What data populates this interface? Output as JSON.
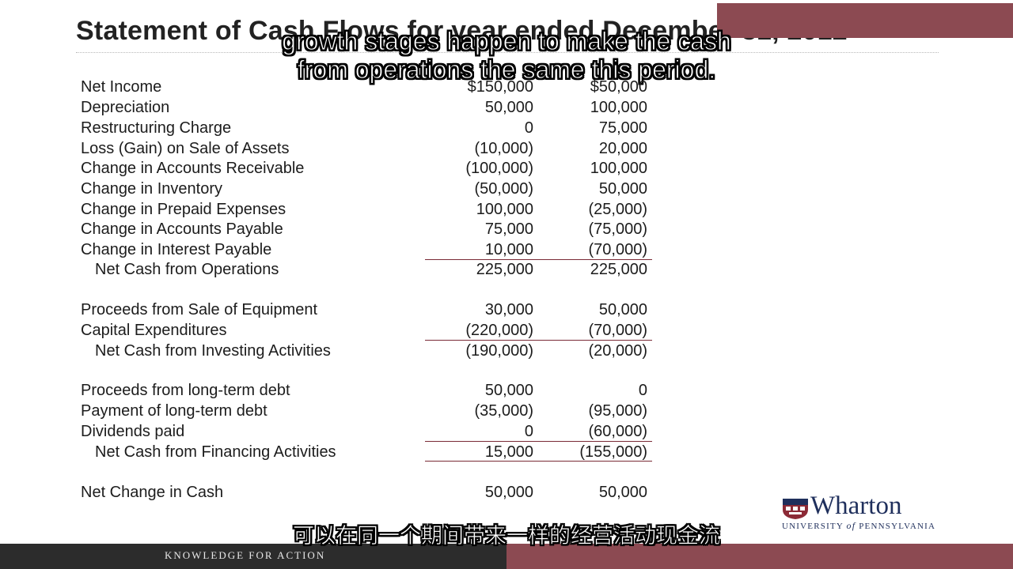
{
  "slide": {
    "title": "Statement of Cash Flows for year ended December 31, 2012"
  },
  "subtitles": {
    "en_line1": "growth stages happen to make the cash",
    "en_line2": "from operations the same this period.",
    "zh": "可以在同一个期间带来一样的经营活动现金流"
  },
  "statement": {
    "rows": [
      {
        "label": "Net Income",
        "a": "$150,000",
        "b": "$50,000"
      },
      {
        "label": "Depreciation",
        "a": "50,000",
        "b": "100,000"
      },
      {
        "label": "Restructuring Charge",
        "a": "0",
        "b": "75,000"
      },
      {
        "label": "Loss (Gain) on Sale of Assets",
        "a": "(10,000)",
        "b": "20,000"
      },
      {
        "label": "Change in Accounts Receivable",
        "a": "(100,000)",
        "b": "100,000"
      },
      {
        "label": "Change in Inventory",
        "a": "(50,000)",
        "b": "50,000"
      },
      {
        "label": "Change in Prepaid Expenses",
        "a": "100,000",
        "b": "(25,000)"
      },
      {
        "label": "Change in Accounts Payable",
        "a": "75,000",
        "b": "(75,000)"
      },
      {
        "label": "Change in Interest Payable",
        "a": "10,000",
        "b": "(70,000)"
      },
      {
        "label": "Net Cash from Operations",
        "a": "225,000",
        "b": "225,000"
      },
      {
        "label": "Proceeds from Sale of Equipment",
        "a": "30,000",
        "b": "50,000"
      },
      {
        "label": "Capital Expenditures",
        "a": "(220,000)",
        "b": "(70,000)"
      },
      {
        "label": "Net Cash from Investing Activities",
        "a": "(190,000)",
        "b": "(20,000)"
      },
      {
        "label": "Proceeds from long-term debt",
        "a": "50,000",
        "b": "0"
      },
      {
        "label": "Payment of long-term debt",
        "a": "(35,000)",
        "b": "(95,000)"
      },
      {
        "label": "Dividends paid",
        "a": "0",
        "b": "(60,000)"
      },
      {
        "label": "Net Cash from Financing Activities",
        "a": "15,000",
        "b": "(155,000)"
      },
      {
        "label": "Net Change in Cash",
        "a": "50,000",
        "b": "50,000"
      }
    ]
  },
  "footer": {
    "tagline": "KNOWLEDGE FOR ACTION"
  },
  "logo": {
    "name": "Wharton",
    "sub_pre": "UNIVERSITY",
    "sub_of": "of",
    "sub_post": "PENNSYLVANIA"
  },
  "colors": {
    "accent": "#8c4a52",
    "rule": "#7a2a36",
    "footer_dark": "#2c2c2c",
    "logo_navy": "#1f2f5c"
  }
}
